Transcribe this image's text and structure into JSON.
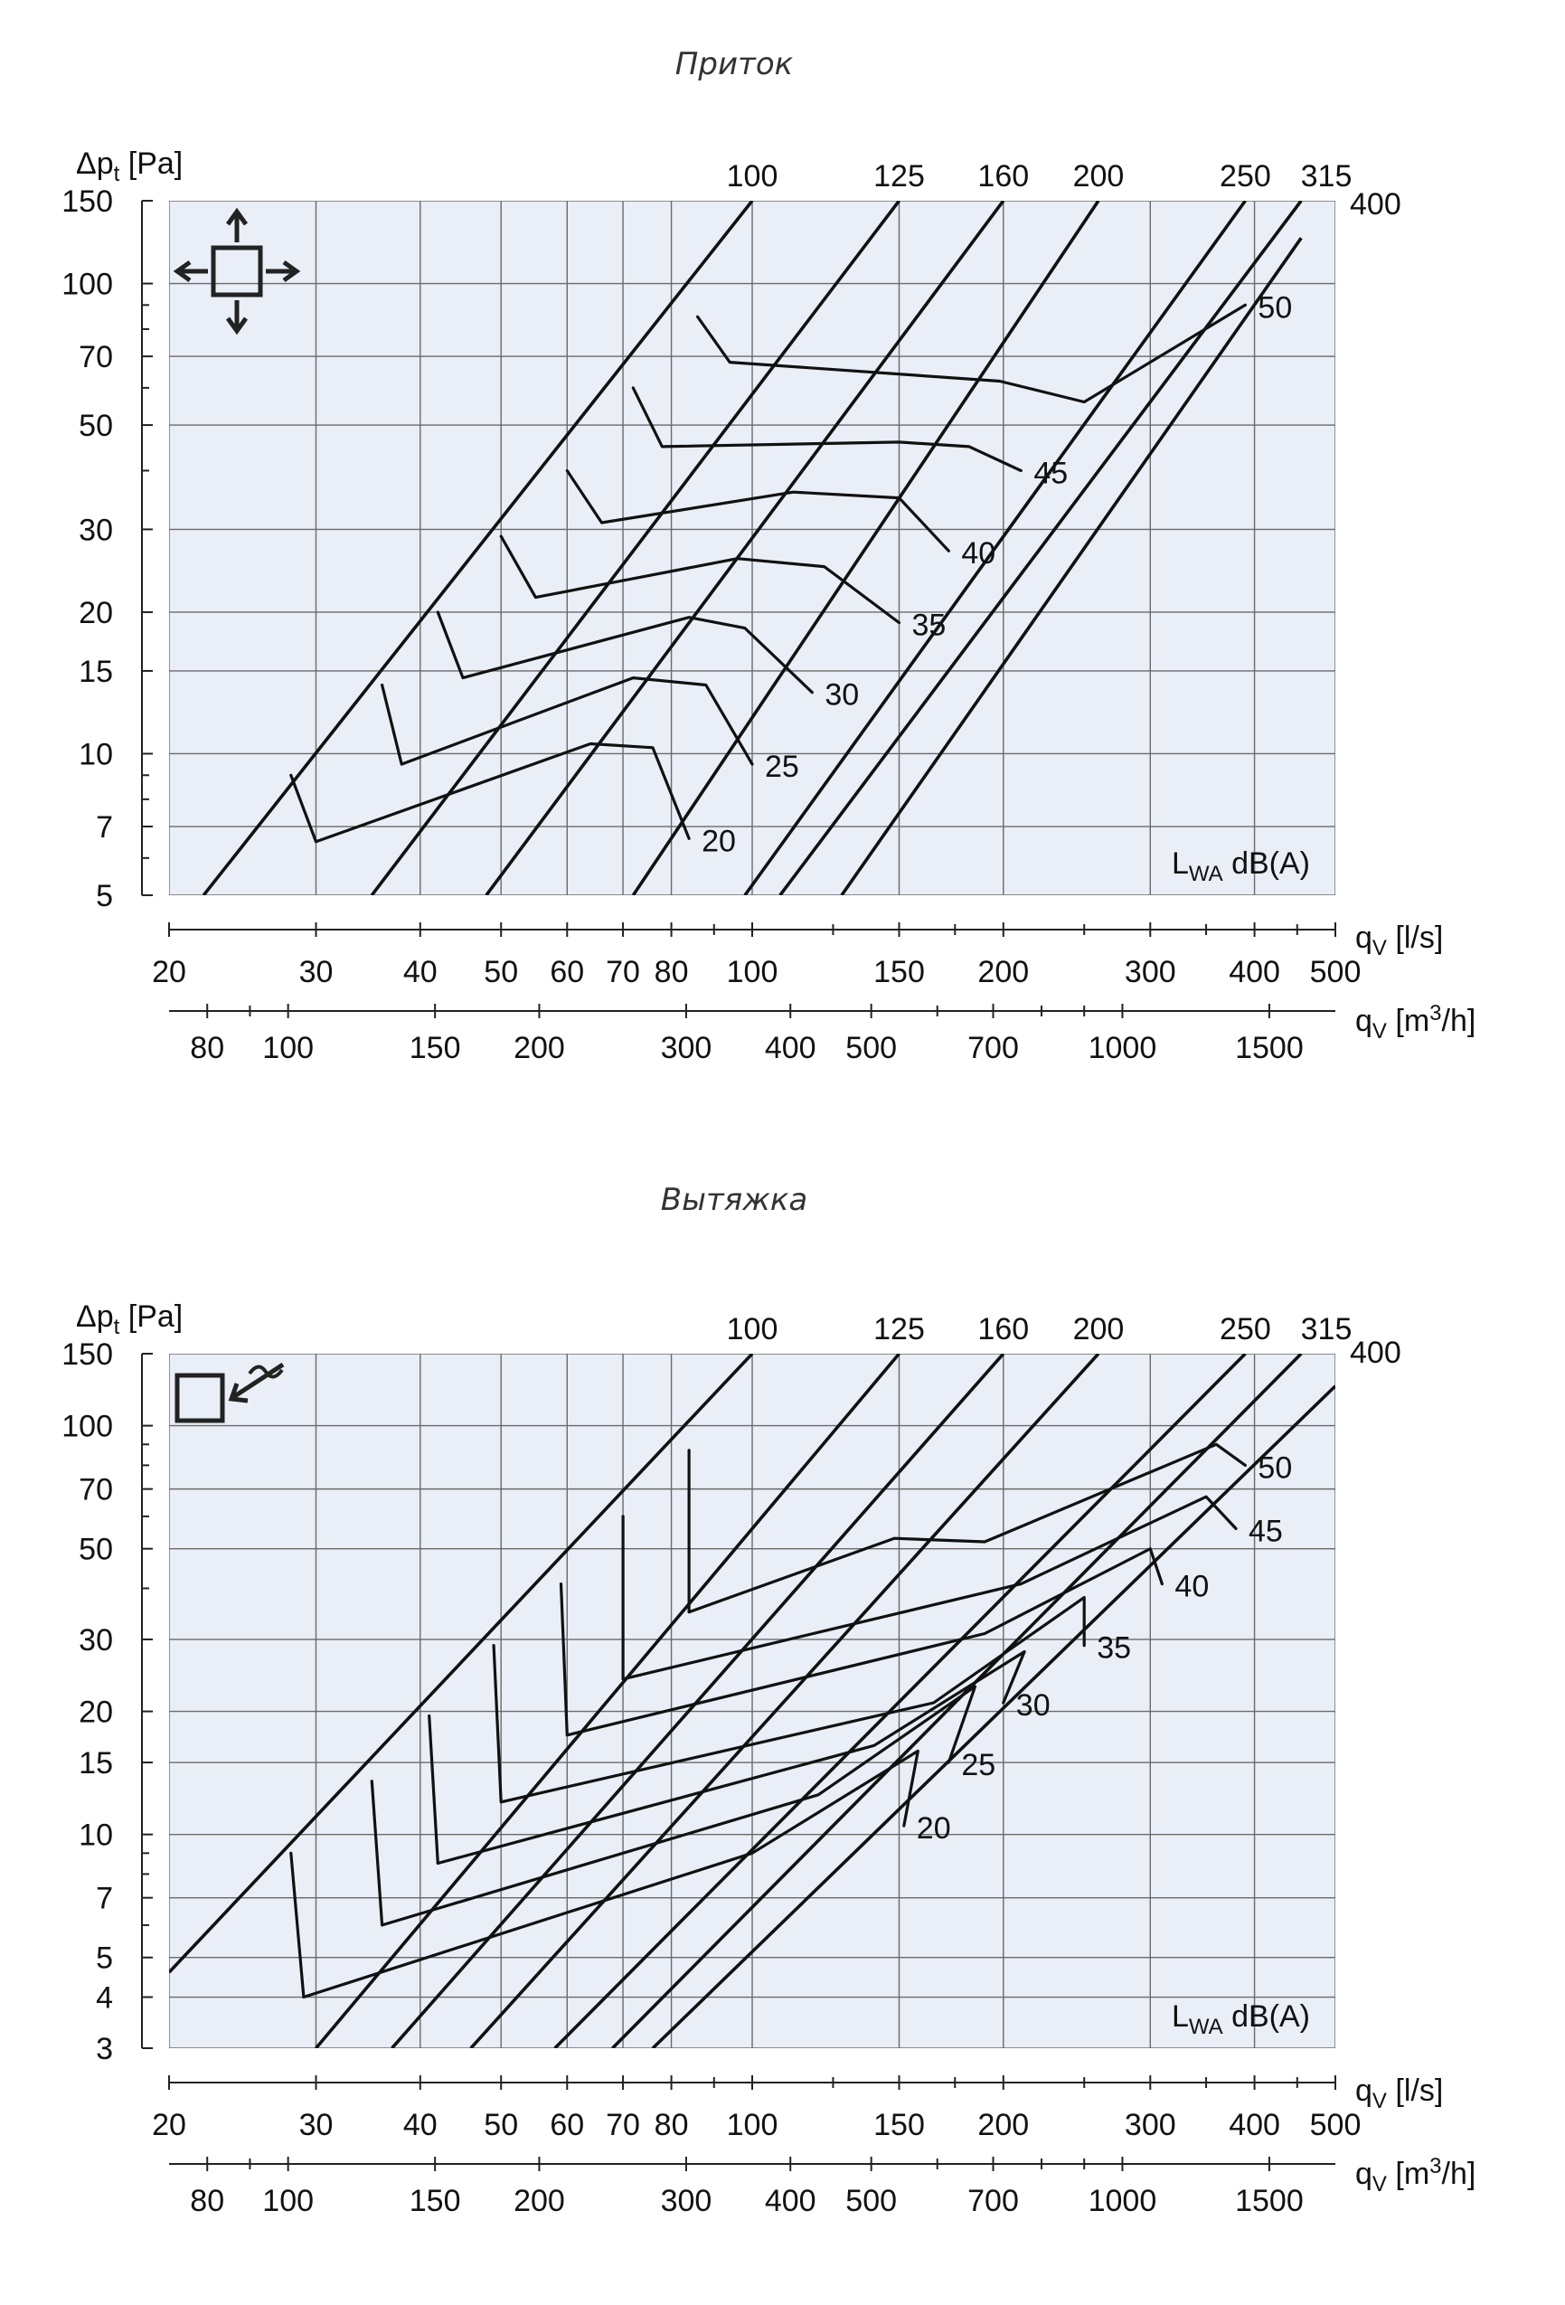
{
  "chart_data": [
    {
      "type": "line",
      "title": "Приток",
      "ylabel_main": "Δp",
      "ylabel_sub": "t",
      "ylabel_unit": " [Pa]",
      "xlabel_ls_main": "q",
      "xlabel_ls_sub": "V",
      "xlabel_ls_unit": " [l/s]",
      "xlabel_m3h_main": "q",
      "xlabel_m3h_sub": "V",
      "xlabel_m3h_unit": " [m",
      "xlabel_m3h_sup": "3",
      "xlabel_m3h_end": "/h]",
      "annotation_main": "L",
      "annotation_sub": "WA",
      "annotation_rest": " dB(A)",
      "icon": "supply-arrows-icon",
      "xlim": [
        20,
        500
      ],
      "ylim": [
        5,
        150
      ],
      "x_scale": "log",
      "y_scale": "log",
      "y_ticks": [
        "150",
        "100",
        "70",
        "50",
        "30",
        "20",
        "15",
        "10",
        "7",
        "5"
      ],
      "x_ticks_ls": [
        "20",
        "30",
        "40",
        "50",
        "60",
        "70",
        "80",
        "100",
        "150",
        "200",
        "300",
        "400",
        "500"
      ],
      "x_ticks_m3h": [
        "80",
        "100",
        "150",
        "200",
        "300",
        "400",
        "500",
        "700",
        "1000",
        "1500"
      ],
      "duct_sizes": [
        {
          "label": "100",
          "points": [
            [
              22,
              5
            ],
            [
              100,
              150
            ]
          ]
        },
        {
          "label": "125",
          "points": [
            [
              35,
              5
            ],
            [
              150,
              150
            ]
          ]
        },
        {
          "label": "160",
          "points": [
            [
              48,
              5
            ],
            [
              200,
              150
            ]
          ]
        },
        {
          "label": "200",
          "points": [
            [
              72,
              5
            ],
            [
              260,
              150
            ]
          ]
        },
        {
          "label": "250",
          "points": [
            [
              98,
              5
            ],
            [
              390,
              150
            ]
          ]
        },
        {
          "label": "315",
          "points": [
            [
              108,
              5
            ],
            [
              455,
              150
            ]
          ]
        },
        {
          "label": "400",
          "points": [
            [
              128,
              5
            ],
            [
              455,
              125
            ]
          ]
        }
      ],
      "sound_levels": [
        {
          "label": "20",
          "points": [
            [
              28,
              9
            ],
            [
              30,
              6.5
            ],
            [
              64,
              10.5
            ],
            [
              76,
              10.3
            ],
            [
              84,
              6.6
            ]
          ]
        },
        {
          "label": "25",
          "points": [
            [
              36,
              14
            ],
            [
              38,
              9.5
            ],
            [
              72,
              14.5
            ],
            [
              88,
              14
            ],
            [
              100,
              9.5
            ]
          ]
        },
        {
          "label": "30",
          "points": [
            [
              42,
              20
            ],
            [
              45,
              14.5
            ],
            [
              84,
              19.5
            ],
            [
              98,
              18.5
            ],
            [
              118,
              13.5
            ]
          ]
        },
        {
          "label": "35",
          "points": [
            [
              50,
              29
            ],
            [
              55,
              21.5
            ],
            [
              96,
              26
            ],
            [
              122,
              25
            ],
            [
              150,
              19
            ]
          ]
        },
        {
          "label": "40",
          "points": [
            [
              60,
              40
            ],
            [
              66,
              31
            ],
            [
              112,
              36
            ],
            [
              150,
              35
            ],
            [
              172,
              27
            ]
          ]
        },
        {
          "label": "45",
          "points": [
            [
              72,
              60
            ],
            [
              78,
              45
            ],
            [
              150,
              46
            ],
            [
              182,
              45
            ],
            [
              210,
              40
            ]
          ]
        },
        {
          "label": "50",
          "points": [
            [
              86,
              85
            ],
            [
              94,
              68
            ],
            [
              198,
              62
            ],
            [
              250,
              56
            ],
            [
              390,
              90
            ]
          ]
        }
      ]
    },
    {
      "type": "line",
      "title": "Вытяжка",
      "ylabel_main": "Δp",
      "ylabel_sub": "t",
      "ylabel_unit": " [Pa]",
      "xlabel_ls_main": "q",
      "xlabel_ls_sub": "V",
      "xlabel_ls_unit": " [l/s]",
      "xlabel_m3h_main": "q",
      "xlabel_m3h_sub": "V",
      "xlabel_m3h_unit": " [m",
      "xlabel_m3h_sup": "3",
      "xlabel_m3h_end": "/h]",
      "annotation_main": "L",
      "annotation_sub": "WA",
      "annotation_rest": " dB(A)",
      "icon": "exhaust-arrow-icon",
      "xlim": [
        20,
        500
      ],
      "ylim": [
        3,
        150
      ],
      "x_scale": "log",
      "y_scale": "log",
      "y_ticks": [
        "150",
        "100",
        "70",
        "50",
        "30",
        "20",
        "15",
        "10",
        "7",
        "5",
        "4",
        "3"
      ],
      "x_ticks_ls": [
        "20",
        "30",
        "40",
        "50",
        "60",
        "70",
        "80",
        "100",
        "150",
        "200",
        "300",
        "400",
        "500"
      ],
      "x_ticks_m3h": [
        "80",
        "100",
        "150",
        "200",
        "300",
        "400",
        "500",
        "700",
        "1000",
        "1500"
      ],
      "duct_sizes": [
        {
          "label": "100",
          "points": [
            [
              20,
              4.6
            ],
            [
              100,
              150
            ]
          ]
        },
        {
          "label": "125",
          "points": [
            [
              30,
              3
            ],
            [
              150,
              150
            ]
          ]
        },
        {
          "label": "160",
          "points": [
            [
              37,
              3
            ],
            [
              200,
              150
            ]
          ]
        },
        {
          "label": "200",
          "points": [
            [
              46,
              3
            ],
            [
              260,
              150
            ]
          ]
        },
        {
          "label": "250",
          "points": [
            [
              58,
              3
            ],
            [
              390,
              150
            ]
          ]
        },
        {
          "label": "315",
          "points": [
            [
              68,
              3
            ],
            [
              455,
              150
            ]
          ]
        },
        {
          "label": "400",
          "points": [
            [
              76,
              3
            ],
            [
              500,
              125
            ]
          ]
        }
      ],
      "sound_levels": [
        {
          "label": "20",
          "points": [
            [
              28,
              9
            ],
            [
              29,
              4
            ],
            [
              100,
              9
            ],
            [
              158,
              16
            ],
            [
              152,
              10.5
            ]
          ]
        },
        {
          "label": "25",
          "points": [
            [
              35,
              13.5
            ],
            [
              36,
              6
            ],
            [
              120,
              12.5
            ],
            [
              185,
              23
            ],
            [
              172,
              15
            ]
          ]
        },
        {
          "label": "30",
          "points": [
            [
              41,
              19.5
            ],
            [
              42,
              8.5
            ],
            [
              140,
              16.5
            ],
            [
              212,
              28
            ],
            [
              200,
              21
            ]
          ]
        },
        {
          "label": "35",
          "points": [
            [
              49,
              29
            ],
            [
              50,
              12
            ],
            [
              165,
              21
            ],
            [
              250,
              38
            ],
            [
              250,
              29
            ]
          ]
        },
        {
          "label": "40",
          "points": [
            [
              59,
              41
            ],
            [
              60,
              17.5
            ],
            [
              190,
              31
            ],
            [
              300,
              50
            ],
            [
              310,
              41
            ]
          ]
        },
        {
          "label": "45",
          "points": [
            [
              70,
              60
            ],
            [
              70,
              24
            ],
            [
              210,
              41
            ],
            [
              350,
              67
            ],
            [
              380,
              56
            ]
          ]
        },
        {
          "label": "50",
          "points": [
            [
              84,
              87
            ],
            [
              84,
              35
            ],
            [
              148,
              53
            ],
            [
              190,
              52
            ],
            [
              360,
              90
            ],
            [
              390,
              80
            ]
          ]
        }
      ]
    }
  ]
}
